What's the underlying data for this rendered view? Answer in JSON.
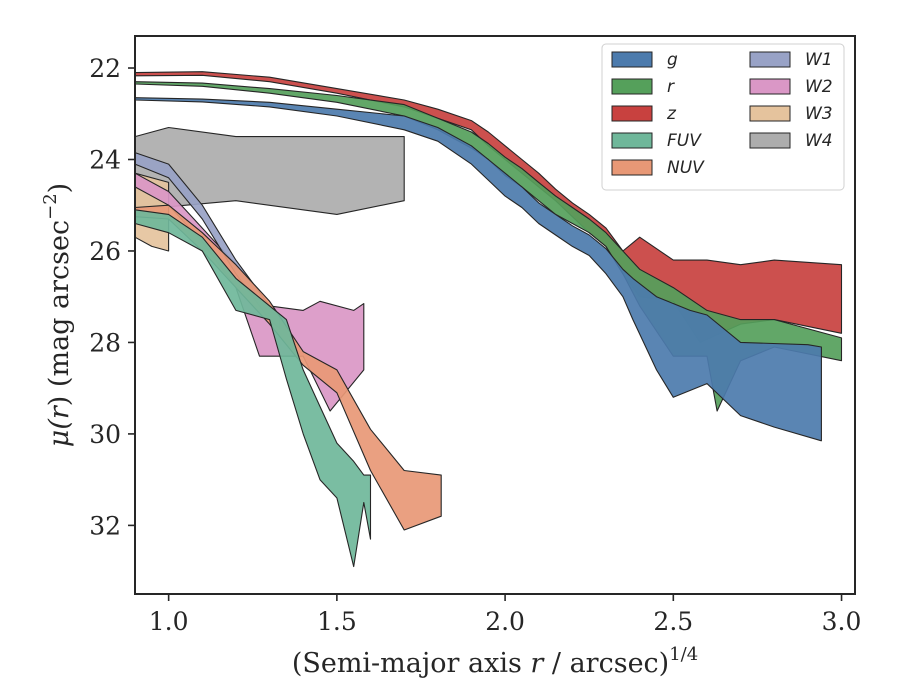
{
  "chart_data": {
    "type": "area",
    "title": "",
    "xlabel": "(Semi-major axis r / arcsec)",
    "xlabel_parts": {
      "prefix": "(Semi-major axis ",
      "var": "r",
      "suffix": " / arcsec)",
      "exponent": "1/4"
    },
    "ylabel": "μ(r) (mag arcsec⁻²)",
    "ylabel_parts": {
      "mu": "μ(",
      "var": "r",
      "mid": ") (mag arcsec",
      "exponent": "−2",
      "end": ")"
    },
    "xlim": [
      0.9,
      3.04
    ],
    "ylim": [
      33.5,
      21.3
    ],
    "y_inverted": true,
    "x_ticks": [
      1.0,
      1.5,
      2.0,
      2.5,
      3.0
    ],
    "x_tick_labels": [
      "1.0",
      "1.5",
      "2.0",
      "2.5",
      "3.0"
    ],
    "y_ticks": [
      22,
      24,
      26,
      28,
      30,
      32
    ],
    "y_tick_labels": [
      "22",
      "24",
      "26",
      "28",
      "30",
      "32"
    ],
    "grid": false,
    "legend": {
      "placement": "top-right",
      "columns": 2
    },
    "series": [
      {
        "name": "g",
        "color": "#4C7BAD",
        "upper": [
          [
            0.9,
            22.65
          ],
          [
            1.1,
            22.68
          ],
          [
            1.3,
            22.75
          ],
          [
            1.5,
            22.9
          ],
          [
            1.7,
            23.05
          ],
          [
            1.8,
            23.3
          ],
          [
            1.9,
            23.7
          ],
          [
            1.95,
            24.0
          ],
          [
            2.0,
            24.3
          ],
          [
            2.05,
            24.6
          ],
          [
            2.1,
            24.95
          ],
          [
            2.15,
            25.2
          ],
          [
            2.2,
            25.45
          ],
          [
            2.25,
            25.65
          ],
          [
            2.3,
            25.95
          ],
          [
            2.35,
            26.4
          ],
          [
            2.38,
            26.6
          ],
          [
            2.45,
            27.0
          ],
          [
            2.55,
            27.3
          ],
          [
            2.6,
            27.4
          ],
          [
            2.7,
            28.0
          ],
          [
            2.9,
            28.05
          ],
          [
            2.94,
            28.1
          ]
        ],
        "lower": [
          [
            0.9,
            22.7
          ],
          [
            1.1,
            22.74
          ],
          [
            1.3,
            22.85
          ],
          [
            1.5,
            23.05
          ],
          [
            1.7,
            23.35
          ],
          [
            1.8,
            23.6
          ],
          [
            1.9,
            24.1
          ],
          [
            1.95,
            24.45
          ],
          [
            2.0,
            24.8
          ],
          [
            2.05,
            25.05
          ],
          [
            2.1,
            25.4
          ],
          [
            2.15,
            25.65
          ],
          [
            2.2,
            25.9
          ],
          [
            2.25,
            26.1
          ],
          [
            2.3,
            26.5
          ],
          [
            2.35,
            27.0
          ],
          [
            2.38,
            27.5
          ],
          [
            2.45,
            28.6
          ],
          [
            2.5,
            29.2
          ],
          [
            2.6,
            28.9
          ],
          [
            2.7,
            29.6
          ],
          [
            2.8,
            29.85
          ],
          [
            2.94,
            30.15
          ]
        ]
      },
      {
        "name": "r",
        "color": "#55A05B",
        "upper": [
          [
            0.9,
            22.3
          ],
          [
            1.1,
            22.33
          ],
          [
            1.3,
            22.45
          ],
          [
            1.5,
            22.6
          ],
          [
            1.7,
            22.8
          ],
          [
            1.8,
            23.1
          ],
          [
            1.9,
            23.4
          ],
          [
            1.95,
            23.65
          ],
          [
            2.0,
            23.95
          ],
          [
            2.05,
            24.2
          ],
          [
            2.1,
            24.5
          ],
          [
            2.15,
            24.8
          ],
          [
            2.2,
            25.05
          ],
          [
            2.25,
            25.3
          ],
          [
            2.3,
            25.6
          ],
          [
            2.35,
            26.0
          ],
          [
            2.4,
            26.4
          ],
          [
            2.5,
            26.8
          ],
          [
            2.6,
            27.3
          ],
          [
            2.7,
            27.5
          ],
          [
            2.8,
            27.5
          ],
          [
            3.0,
            27.9
          ]
        ],
        "lower": [
          [
            0.9,
            22.35
          ],
          [
            1.1,
            22.4
          ],
          [
            1.3,
            22.55
          ],
          [
            1.5,
            22.75
          ],
          [
            1.7,
            23.05
          ],
          [
            1.8,
            23.35
          ],
          [
            1.9,
            23.75
          ],
          [
            1.95,
            24.0
          ],
          [
            2.0,
            24.35
          ],
          [
            2.05,
            24.6
          ],
          [
            2.1,
            24.9
          ],
          [
            2.15,
            25.2
          ],
          [
            2.2,
            25.4
          ],
          [
            2.25,
            25.6
          ],
          [
            2.3,
            25.9
          ],
          [
            2.35,
            26.5
          ],
          [
            2.4,
            27.2
          ],
          [
            2.5,
            28.3
          ],
          [
            2.6,
            28.3
          ],
          [
            2.63,
            29.5
          ],
          [
            2.7,
            28.4
          ],
          [
            2.8,
            28.1
          ],
          [
            3.0,
            28.4
          ]
        ]
      },
      {
        "name": "z",
        "color": "#C8413F",
        "upper": [
          [
            0.9,
            22.1
          ],
          [
            1.1,
            22.08
          ],
          [
            1.3,
            22.2
          ],
          [
            1.5,
            22.45
          ],
          [
            1.7,
            22.7
          ],
          [
            1.8,
            22.9
          ],
          [
            1.9,
            23.15
          ],
          [
            1.95,
            23.4
          ],
          [
            2.0,
            23.7
          ],
          [
            2.05,
            24.0
          ],
          [
            2.1,
            24.3
          ],
          [
            2.15,
            24.65
          ],
          [
            2.2,
            24.95
          ],
          [
            2.25,
            25.2
          ],
          [
            2.3,
            25.5
          ],
          [
            2.35,
            26.0
          ],
          [
            2.4,
            25.7
          ],
          [
            2.5,
            26.2
          ],
          [
            2.6,
            26.2
          ],
          [
            2.7,
            26.3
          ],
          [
            2.8,
            26.2
          ],
          [
            3.0,
            26.3
          ]
        ],
        "lower": [
          [
            0.9,
            22.17
          ],
          [
            1.1,
            22.16
          ],
          [
            1.3,
            22.3
          ],
          [
            1.5,
            22.55
          ],
          [
            1.7,
            22.85
          ],
          [
            1.8,
            23.1
          ],
          [
            1.9,
            23.35
          ],
          [
            1.95,
            23.7
          ],
          [
            2.0,
            24.0
          ],
          [
            2.05,
            24.3
          ],
          [
            2.1,
            24.6
          ],
          [
            2.15,
            24.9
          ],
          [
            2.2,
            25.25
          ],
          [
            2.25,
            25.6
          ],
          [
            2.3,
            25.9
          ],
          [
            2.35,
            26.5
          ],
          [
            2.4,
            27.0
          ],
          [
            2.5,
            27.1
          ],
          [
            2.58,
            28.0
          ],
          [
            2.7,
            27.6
          ],
          [
            2.8,
            27.5
          ],
          [
            3.0,
            27.8
          ]
        ]
      },
      {
        "name": "FUV",
        "color": "#6FB79A",
        "upper": [
          [
            0.9,
            25.1
          ],
          [
            1.0,
            25.2
          ],
          [
            1.1,
            25.7
          ],
          [
            1.2,
            26.6
          ],
          [
            1.3,
            27.2
          ],
          [
            1.35,
            27.5
          ],
          [
            1.4,
            28.6
          ],
          [
            1.45,
            29.4
          ],
          [
            1.5,
            30.2
          ],
          [
            1.55,
            30.6
          ],
          [
            1.58,
            30.9
          ],
          [
            1.6,
            30.9
          ]
        ],
        "lower": [
          [
            0.9,
            25.4
          ],
          [
            1.0,
            25.6
          ],
          [
            1.1,
            26.0
          ],
          [
            1.2,
            27.3
          ],
          [
            1.3,
            27.5
          ],
          [
            1.35,
            28.8
          ],
          [
            1.4,
            30.0
          ],
          [
            1.45,
            31.0
          ],
          [
            1.5,
            31.4
          ],
          [
            1.55,
            32.9
          ],
          [
            1.58,
            31.5
          ],
          [
            1.6,
            32.3
          ]
        ]
      },
      {
        "name": "NUV",
        "color": "#E89876",
        "upper": [
          [
            0.9,
            25.05
          ],
          [
            1.0,
            25.0
          ],
          [
            1.1,
            25.6
          ],
          [
            1.2,
            26.3
          ],
          [
            1.3,
            27.1
          ],
          [
            1.4,
            28.2
          ],
          [
            1.5,
            28.6
          ],
          [
            1.6,
            29.9
          ],
          [
            1.7,
            30.8
          ],
          [
            1.81,
            30.9
          ]
        ],
        "lower": [
          [
            0.9,
            25.25
          ],
          [
            1.0,
            25.3
          ],
          [
            1.1,
            26.0
          ],
          [
            1.2,
            26.8
          ],
          [
            1.3,
            27.6
          ],
          [
            1.4,
            28.5
          ],
          [
            1.5,
            29.1
          ],
          [
            1.6,
            30.8
          ],
          [
            1.7,
            32.1
          ],
          [
            1.81,
            31.8
          ]
        ]
      },
      {
        "name": "W1",
        "color": "#98A2C6",
        "upper": [
          [
            0.9,
            23.85
          ],
          [
            1.0,
            24.1
          ],
          [
            1.1,
            25.0
          ],
          [
            1.2,
            26.2
          ],
          [
            1.3,
            27.2
          ],
          [
            1.33,
            27.4
          ]
        ],
        "lower": [
          [
            0.9,
            24.1
          ],
          [
            1.0,
            24.4
          ],
          [
            1.1,
            25.3
          ],
          [
            1.2,
            26.5
          ],
          [
            1.3,
            27.5
          ],
          [
            1.33,
            27.7
          ]
        ]
      },
      {
        "name": "W2",
        "color": "#DA97C6",
        "upper": [
          [
            0.9,
            24.3
          ],
          [
            1.0,
            24.7
          ],
          [
            1.1,
            25.5
          ],
          [
            1.2,
            26.3
          ],
          [
            1.3,
            27.2
          ],
          [
            1.4,
            27.3
          ],
          [
            1.45,
            27.1
          ],
          [
            1.55,
            27.3
          ],
          [
            1.58,
            27.15
          ]
        ],
        "lower": [
          [
            0.9,
            24.6
          ],
          [
            1.0,
            25.0
          ],
          [
            1.1,
            25.8
          ],
          [
            1.2,
            26.8
          ],
          [
            1.27,
            28.3
          ],
          [
            1.4,
            28.3
          ],
          [
            1.48,
            29.5
          ],
          [
            1.58,
            28.6
          ]
        ]
      },
      {
        "name": "W3",
        "color": "#E5C39D",
        "upper": [
          [
            0.9,
            24.3
          ],
          [
            1.0,
            24.5
          ]
        ],
        "lower": [
          [
            0.9,
            25.7
          ],
          [
            0.95,
            25.9
          ],
          [
            1.0,
            26.0
          ]
        ]
      },
      {
        "name": "W4",
        "color": "#ADADAD",
        "upper": [
          [
            0.9,
            23.5
          ],
          [
            1.0,
            23.3
          ],
          [
            1.2,
            23.5
          ],
          [
            1.7,
            23.5
          ]
        ],
        "lower": [
          [
            0.9,
            25.1
          ],
          [
            1.2,
            24.9
          ],
          [
            1.5,
            25.2
          ],
          [
            1.7,
            24.9
          ]
        ]
      }
    ]
  }
}
